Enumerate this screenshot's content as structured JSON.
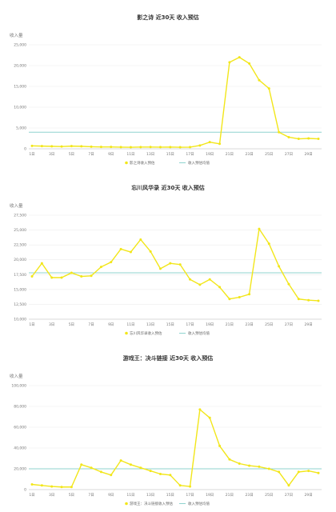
{
  "chart_data": [
    {
      "type": "line",
      "title": "影之诗 近30天 收入预估",
      "ylabel": "收入量",
      "ylim": [
        0,
        25000
      ],
      "yticks": [
        "0",
        "5,000",
        "10,000",
        "15,000",
        "20,000",
        "25,000"
      ],
      "x_ticks": [
        "1日",
        "3日",
        "5日",
        "7日",
        "9日",
        "11日",
        "13日",
        "15日",
        "17日",
        "19日",
        "21日",
        "23日",
        "25日",
        "27日",
        "29日"
      ],
      "series": [
        {
          "name": "影之诗收入预估",
          "color": "#f2e61a",
          "values": [
            700,
            650,
            600,
            550,
            650,
            600,
            500,
            450,
            450,
            400,
            380,
            420,
            430,
            400,
            420,
            380,
            400,
            800,
            1600,
            1200,
            20800,
            22000,
            20500,
            16500,
            14500,
            4000,
            2800,
            2400,
            2500,
            2400
          ]
        },
        {
          "name": "收入预估均值",
          "color": "#8fd3cf",
          "type": "hline",
          "values": [
            4000
          ]
        }
      ],
      "grid": true,
      "legend": "bottom-center"
    },
    {
      "type": "line",
      "title": "忘川风华录 近30天 收入预估",
      "ylabel": "收入量",
      "ylim": [
        10000,
        27500
      ],
      "yticks": [
        "10,000",
        "12,500",
        "15,000",
        "17,500",
        "20,000",
        "22,500",
        "25,000",
        "27,500"
      ],
      "x_ticks": [
        "1日",
        "3日",
        "5日",
        "7日",
        "9日",
        "11日",
        "13日",
        "15日",
        "17日",
        "19日",
        "21日",
        "23日",
        "25日",
        "27日",
        "29日"
      ],
      "series": [
        {
          "name": "忘川风华录收入预估",
          "color": "#f2e61a",
          "values": [
            17200,
            19400,
            17000,
            17000,
            17800,
            17200,
            17300,
            18800,
            19600,
            21800,
            21300,
            23400,
            21400,
            18500,
            19400,
            19200,
            16700,
            15800,
            16700,
            15400,
            13400,
            13700,
            14200,
            25200,
            22700,
            18900,
            15900,
            13400,
            13200,
            13100
          ]
        },
        {
          "name": "收入预估均值",
          "color": "#8fd3cf",
          "type": "hline",
          "values": [
            17800
          ]
        }
      ],
      "grid": true,
      "legend": "bottom-center"
    },
    {
      "type": "line",
      "title": "游戏王：决斗链接 近30天 收入预估",
      "ylabel": "收入量",
      "ylim": [
        0,
        100000
      ],
      "yticks": [
        "0",
        "20,000",
        "40,000",
        "60,000",
        "80,000",
        "100,000"
      ],
      "x_ticks": [
        "1日",
        "3日",
        "5日",
        "7日",
        "9日",
        "11日",
        "13日",
        "15日",
        "17日",
        "19日",
        "21日",
        "23日",
        "25日",
        "27日",
        "29日"
      ],
      "series": [
        {
          "name": "游戏王：决斗链接收入预估",
          "color": "#f2e61a",
          "values": [
            5000,
            4000,
            3000,
            2500,
            2500,
            24000,
            21000,
            17000,
            14000,
            28000,
            24000,
            21000,
            18000,
            15000,
            14000,
            4000,
            3000,
            77000,
            69000,
            42000,
            29000,
            25000,
            23000,
            22000,
            20000,
            17000,
            4000,
            17000,
            18000,
            16000
          ]
        },
        {
          "name": "收入预估均值",
          "color": "#8fd3cf",
          "type": "hline",
          "values": [
            20000
          ]
        }
      ],
      "grid": true,
      "legend": "bottom-center"
    }
  ]
}
